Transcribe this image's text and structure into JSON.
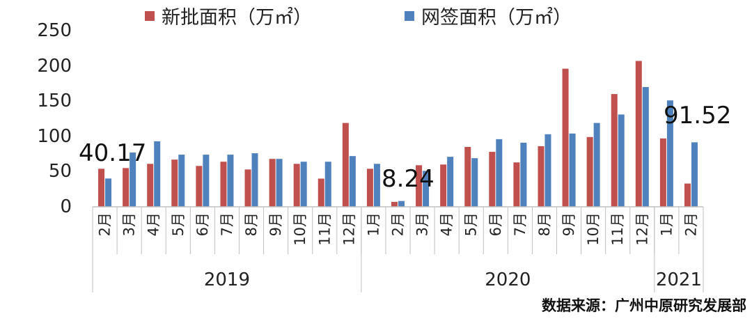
{
  "chart_data": {
    "type": "bar",
    "title": "",
    "xlabel": "",
    "ylabel": "",
    "ylim": [
      0,
      250
    ],
    "yticks": [
      "0",
      "50",
      "100",
      "150",
      "200",
      "250"
    ],
    "categories": [
      "2月",
      "3月",
      "4月",
      "5月",
      "6月",
      "7月",
      "8月",
      "9月",
      "10月",
      "11月",
      "12月",
      "1月",
      "2月",
      "3月",
      "4月",
      "5月",
      "6月",
      "7月",
      "8月",
      "9月",
      "10月",
      "11月",
      "12月",
      "1月",
      "2月"
    ],
    "year_groups": [
      {
        "label": "2019",
        "count": 11
      },
      {
        "label": "2020",
        "count": 12
      },
      {
        "label": "2021",
        "count": 2
      }
    ],
    "series": [
      {
        "name": "新批面积（万㎡）",
        "color": "#c0504d",
        "values": [
          54,
          55,
          61,
          67,
          58,
          64,
          53,
          68,
          61,
          40,
          119,
          54,
          7,
          59,
          60,
          85,
          78,
          63,
          86,
          196,
          99,
          160,
          207,
          97,
          33
        ]
      },
      {
        "name": "网签面积（万㎡）",
        "color": "#4f81bd",
        "values": [
          40.17,
          77,
          93,
          74,
          74,
          74,
          76,
          68,
          64,
          64,
          72,
          61,
          8.24,
          51,
          71,
          69,
          96,
          91,
          103,
          104,
          119,
          131,
          170,
          151,
          91.52
        ]
      }
    ],
    "annotations": [
      "40.17",
      "8.24",
      "91.52"
    ],
    "legend_position": "top",
    "grid": false
  },
  "source_note": "数据来源：广州中原研究发展部"
}
